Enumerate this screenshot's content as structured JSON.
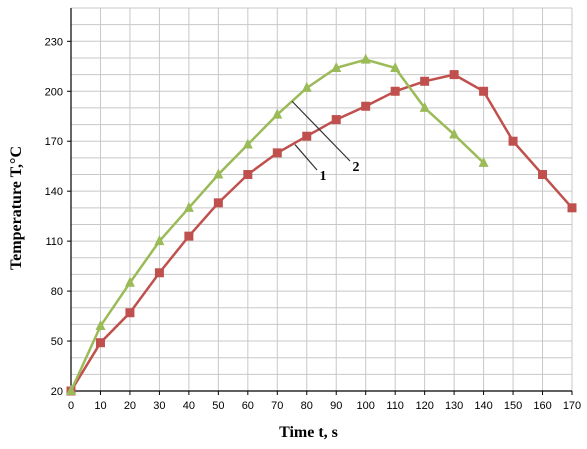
{
  "chart_data": {
    "type": "line",
    "title": "",
    "xlabel": "Time t, s",
    "ylabel": "Temperature T,°C",
    "xlim": [
      0,
      170
    ],
    "ylim": [
      20,
      250
    ],
    "x_ticks": [
      0,
      10,
      20,
      30,
      40,
      50,
      60,
      70,
      80,
      90,
      100,
      110,
      120,
      130,
      140,
      150,
      160,
      170
    ],
    "y_ticks": [
      20,
      50,
      80,
      110,
      140,
      170,
      200,
      230
    ],
    "grid": true,
    "legend": "none",
    "series": [
      {
        "name": "1",
        "color": "#c0504d",
        "marker": "square",
        "x": [
          0,
          10,
          20,
          30,
          40,
          50,
          60,
          70,
          80,
          90,
          100,
          110,
          120,
          130,
          140,
          150,
          160,
          170
        ],
        "y": [
          20,
          49,
          67,
          91,
          113,
          133,
          150,
          163,
          173,
          183,
          191,
          200,
          206,
          210,
          200,
          170,
          150,
          130
        ]
      },
      {
        "name": "2",
        "color": "#9bbb59",
        "marker": "triangle",
        "x": [
          0,
          10,
          20,
          30,
          40,
          50,
          60,
          70,
          80,
          90,
          100,
          110,
          120,
          130,
          140
        ],
        "y": [
          20,
          59,
          85,
          110,
          130,
          150,
          168,
          186,
          202,
          214,
          219,
          214,
          190,
          174,
          157
        ]
      }
    ],
    "annotations": [
      {
        "text": "1",
        "target_series": 0,
        "x": 76,
        "y": 168
      },
      {
        "text": "2",
        "target_series": 1,
        "x": 75,
        "y": 194
      }
    ]
  }
}
